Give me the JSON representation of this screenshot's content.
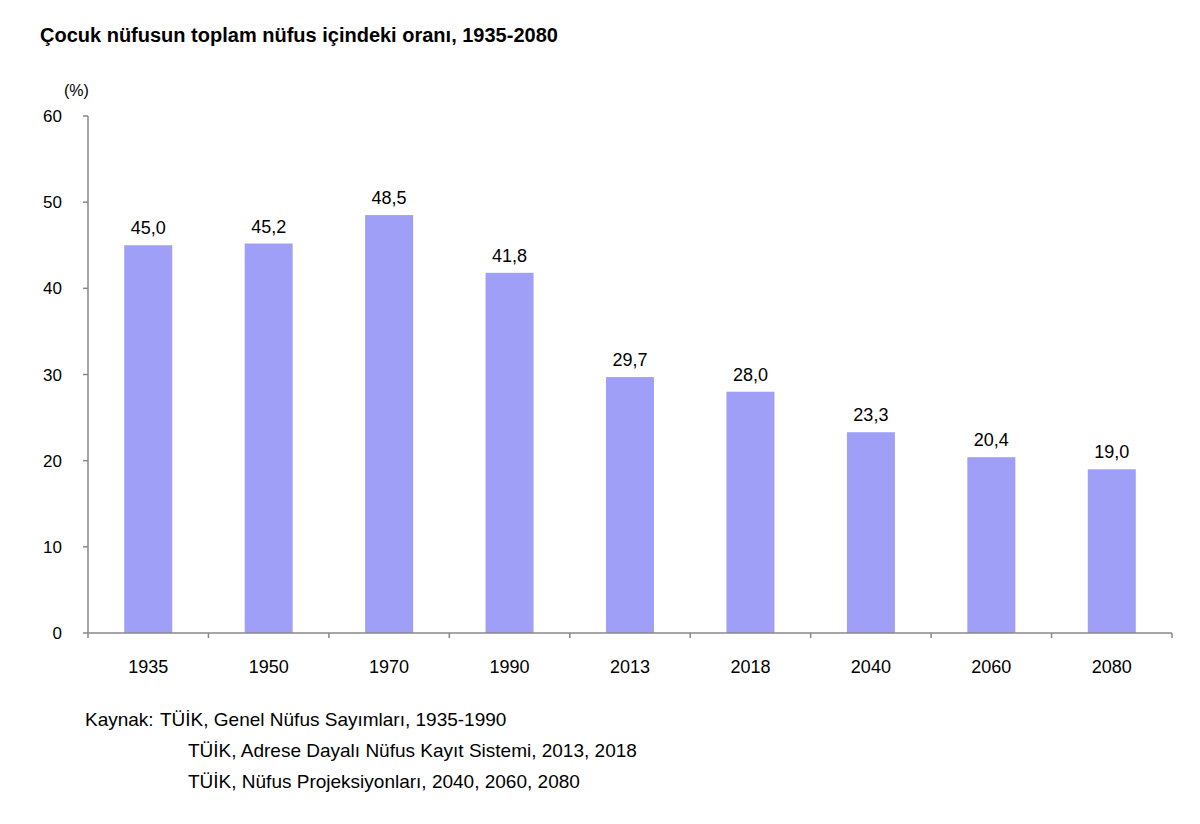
{
  "chart_data": {
    "type": "bar",
    "title": "Çocuk nüfusun toplam nüfus içindeki oranı, 1935-2080",
    "y_label": "(%)",
    "categories": [
      "1935",
      "1950",
      "1970",
      "1990",
      "2013",
      "2018",
      "2040",
      "2060",
      "2080"
    ],
    "values": [
      45.0,
      45.2,
      48.5,
      41.8,
      29.7,
      28.0,
      23.3,
      20.4,
      19.0
    ],
    "value_labels": [
      "45,0",
      "45,2",
      "48,5",
      "41,8",
      "29,7",
      "28,0",
      "23,3",
      "20,4",
      "19,0"
    ],
    "color": "#9f9ff7",
    "ylim": [
      0,
      60
    ],
    "yticks": [
      0,
      10,
      20,
      30,
      40,
      50,
      60
    ],
    "grid": false,
    "data_labels": true,
    "source": {
      "label": "Kaynak:",
      "lines": [
        "TÜİK, Genel Nüfus Sayımları, 1935-1990",
        "TÜİK, Adrese Dayalı Nüfus Kayıt Sistemi, 2013, 2018",
        "TÜİK, Nüfus Projeksiyonları, 2040, 2060, 2080"
      ]
    }
  }
}
